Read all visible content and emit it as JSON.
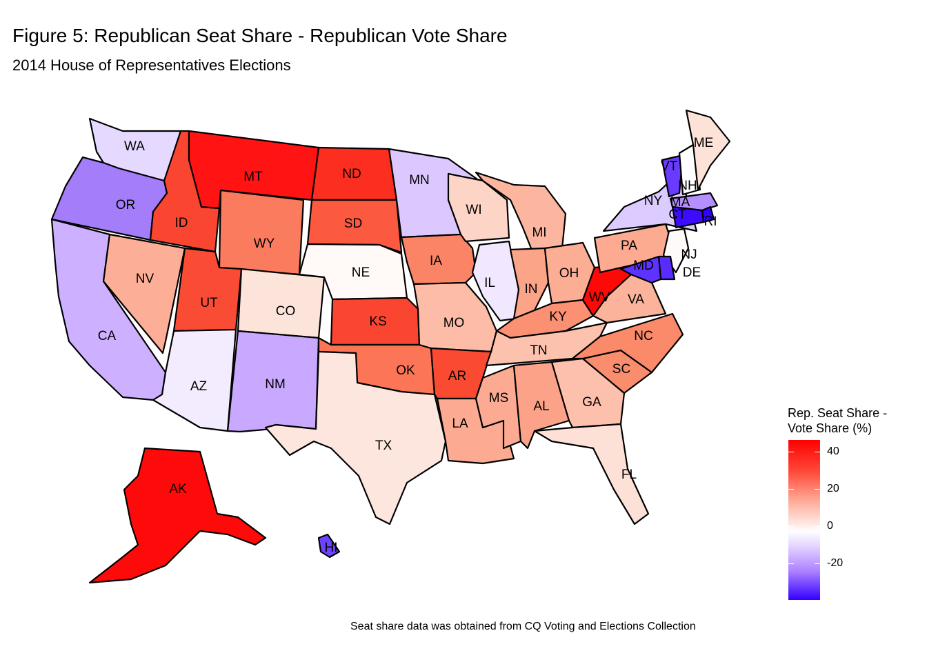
{
  "title": "Figure 5: Republican Seat Share - Republican Vote Share",
  "subtitle": "2014 House of Representatives Elections",
  "caption": "Seat share data was obtained from CQ Voting and Elections Collection",
  "legend": {
    "title_line1": "Rep. Seat Share -",
    "title_line2": "Vote Share (%)",
    "ticks": [
      "40",
      "20",
      "0",
      "-20"
    ],
    "colors": {
      "high": "#ff0000",
      "mid": "#ffffff",
      "low": "#3300ff"
    }
  },
  "states": [
    {
      "abbr": "WA",
      "fill": "#e6d9ff"
    },
    {
      "abbr": "OR",
      "fill": "#a47dfb"
    },
    {
      "abbr": "CA",
      "fill": "#cdb0ff"
    },
    {
      "abbr": "ID",
      "fill": "#fa4530"
    },
    {
      "abbr": "NV",
      "fill": "#fcaf96"
    },
    {
      "abbr": "MT",
      "fill": "#ff1313"
    },
    {
      "abbr": "WY",
      "fill": "#fb7b5e"
    },
    {
      "abbr": "UT",
      "fill": "#fa4c35"
    },
    {
      "abbr": "AZ",
      "fill": "#f3ecff"
    },
    {
      "abbr": "CO",
      "fill": "#fde4db"
    },
    {
      "abbr": "NM",
      "fill": "#c9a8ff"
    },
    {
      "abbr": "ND",
      "fill": "#fb2e20"
    },
    {
      "abbr": "SD",
      "fill": "#fb5a40"
    },
    {
      "abbr": "NE",
      "fill": "#fffaf8"
    },
    {
      "abbr": "KS",
      "fill": "#fa4630"
    },
    {
      "abbr": "OK",
      "fill": "#fb7556"
    },
    {
      "abbr": "TX",
      "fill": "#fde6dd"
    },
    {
      "abbr": "MN",
      "fill": "#dcc7ff"
    },
    {
      "abbr": "IA",
      "fill": "#fb8366"
    },
    {
      "abbr": "MO",
      "fill": "#fdbca8"
    },
    {
      "abbr": "AR",
      "fill": "#fa4b32"
    },
    {
      "abbr": "LA",
      "fill": "#fcab92"
    },
    {
      "abbr": "WI",
      "fill": "#fdd5c7"
    },
    {
      "abbr": "IL",
      "fill": "#f1e8ff"
    },
    {
      "abbr": "MI",
      "fill": "#fcb6a0"
    },
    {
      "abbr": "IN",
      "fill": "#fca488"
    },
    {
      "abbr": "OH",
      "fill": "#fcae95"
    },
    {
      "abbr": "KY",
      "fill": "#fb9072"
    },
    {
      "abbr": "TN",
      "fill": "#fdc2ae"
    },
    {
      "abbr": "MS",
      "fill": "#fcaa91"
    },
    {
      "abbr": "AL",
      "fill": "#fca288"
    },
    {
      "abbr": "GA",
      "fill": "#fdc0ac"
    },
    {
      "abbr": "FL",
      "fill": "#fde1d7"
    },
    {
      "abbr": "SC",
      "fill": "#fb8d6f"
    },
    {
      "abbr": "NC",
      "fill": "#fb8a6b"
    },
    {
      "abbr": "VA",
      "fill": "#fcb39c"
    },
    {
      "abbr": "WV",
      "fill": "#ff0808"
    },
    {
      "abbr": "PA",
      "fill": "#fcaa90"
    },
    {
      "abbr": "NY",
      "fill": "#dccbff"
    },
    {
      "abbr": "VT",
      "fill": "#6a3bff"
    },
    {
      "abbr": "NH",
      "fill": "#ffffff"
    },
    {
      "abbr": "ME",
      "fill": "#fde2d8"
    },
    {
      "abbr": "MA",
      "fill": "#b48fff"
    },
    {
      "abbr": "RI",
      "fill": "#3300ff"
    },
    {
      "abbr": "CT",
      "fill": "#3d0cff"
    },
    {
      "abbr": "NJ",
      "fill": "#fffafa"
    },
    {
      "abbr": "DE",
      "fill": "#5a2bff"
    },
    {
      "abbr": "MD",
      "fill": "#5f33ff"
    },
    {
      "abbr": "AK",
      "fill": "#ff0a0a"
    },
    {
      "abbr": "HI",
      "fill": "#6c44ff"
    }
  ]
}
